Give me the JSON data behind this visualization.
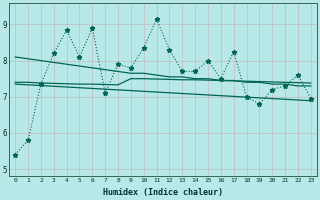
{
  "xlabel": "Humidex (Indice chaleur)",
  "background_color": "#b8e8e8",
  "grid_color": "#99cccc",
  "line_color": "#006655",
  "x": [
    0,
    1,
    2,
    3,
    4,
    5,
    6,
    7,
    8,
    9,
    10,
    11,
    12,
    13,
    14,
    15,
    16,
    17,
    18,
    19,
    20,
    21,
    22,
    23
  ],
  "y_main": [
    5.4,
    5.8,
    7.35,
    8.2,
    8.85,
    8.1,
    8.9,
    7.1,
    7.9,
    7.8,
    8.35,
    9.15,
    8.3,
    7.7,
    7.7,
    8.0,
    7.5,
    8.25,
    7.0,
    6.8,
    7.2,
    7.3,
    7.6,
    6.95
  ],
  "y_upper": [
    8.1,
    8.05,
    8.0,
    7.95,
    7.9,
    7.85,
    7.8,
    7.75,
    7.7,
    7.65,
    7.65,
    7.6,
    7.55,
    7.55,
    7.5,
    7.5,
    7.45,
    7.45,
    7.4,
    7.4,
    7.35,
    7.35,
    7.3,
    7.3
  ],
  "y_mid": [
    7.4,
    7.4,
    7.38,
    7.37,
    7.36,
    7.35,
    7.35,
    7.34,
    7.33,
    7.5,
    7.5,
    7.49,
    7.48,
    7.47,
    7.47,
    7.46,
    7.45,
    7.44,
    7.43,
    7.42,
    7.41,
    7.4,
    7.39,
    7.38
  ],
  "y_lower": [
    7.35,
    7.33,
    7.31,
    7.29,
    7.27,
    7.25,
    7.23,
    7.21,
    7.19,
    7.17,
    7.15,
    7.13,
    7.11,
    7.09,
    7.07,
    7.05,
    7.03,
    7.01,
    6.99,
    6.97,
    6.95,
    6.93,
    6.91,
    6.89
  ],
  "ylim": [
    4.8,
    9.6
  ],
  "yticks": [
    5,
    6,
    7,
    8,
    9
  ],
  "xticks": [
    0,
    1,
    2,
    3,
    4,
    5,
    6,
    7,
    8,
    9,
    10,
    11,
    12,
    13,
    14,
    15,
    16,
    17,
    18,
    19,
    20,
    21,
    22,
    23
  ]
}
